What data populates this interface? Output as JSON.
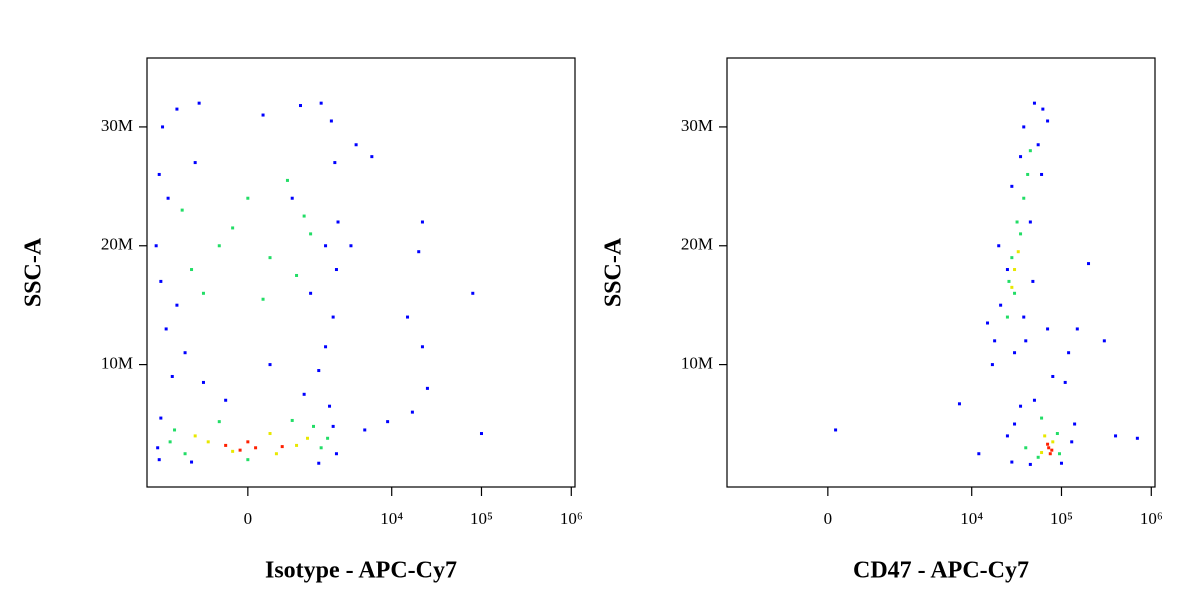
{
  "chart_data": [
    {
      "type": "scatter",
      "xlabel": "Isotype - APC-Cy7",
      "ylabel": "SSC-A",
      "xscale": "logicle",
      "xlim": [
        -3300,
        1100000
      ],
      "ylim": [
        -300000,
        35800000
      ],
      "xticks": [
        0,
        {
          "value": 10000,
          "label": "10⁴"
        },
        {
          "value": 100000,
          "label": "10⁵"
        },
        {
          "value": 1000000,
          "label": "10⁶"
        }
      ],
      "yticks": [
        {
          "value": 10000000,
          "label": "10M"
        },
        {
          "value": 20000000,
          "label": "20M"
        },
        {
          "value": 30000000,
          "label": "30M"
        }
      ],
      "series": [
        {
          "color": "#0000ff",
          "x": [
            -2200,
            -1500,
            -800,
            200,
            900,
            1600,
            2100,
            -2400,
            -1900,
            2300,
            2500,
            -2600,
            -2300,
            2400,
            2200,
            -2000,
            -1200,
            300,
            1500,
            -700,
            1000,
            -300,
            1800,
            -1700,
            2000,
            -2300,
            -2500,
            -2400,
            2400,
            2200,
            -1000,
            1500,
            6000,
            4000,
            3500,
            22000,
            20000,
            80000,
            15000,
            22000,
            25000,
            17000,
            100000,
            5000,
            9000,
            -1500,
            1200,
            -900,
            700,
            1800
          ],
          "y": [
            30000000,
            31500000,
            32000000,
            31000000,
            31800000,
            32000000,
            30500000,
            26000000,
            24000000,
            27000000,
            22000000,
            20000000,
            17000000,
            18000000,
            14000000,
            13000000,
            11000000,
            10000000,
            9500000,
            8500000,
            7500000,
            7000000,
            11500000,
            9000000,
            6500000,
            5500000,
            3000000,
            2000000,
            2500000,
            4800000,
            1800000,
            1700000,
            27500000,
            28500000,
            20000000,
            22000000,
            19500000,
            16000000,
            14000000,
            11500000,
            8000000,
            6000000,
            4200000,
            4500000,
            5200000,
            15000000,
            16000000,
            27000000,
            24000000,
            20000000
          ]
        },
        {
          "color": "#22dd66",
          "x": [
            -1000,
            -400,
            300,
            800,
            1200,
            -1300,
            0,
            600,
            -700,
            200,
            1000,
            -200,
            -1600,
            -1200,
            1300,
            1600,
            -400,
            700,
            -1800,
            1900,
            0
          ],
          "y": [
            18000000,
            20000000,
            19000000,
            17500000,
            21000000,
            23000000,
            24000000,
            25500000,
            16000000,
            15500000,
            22500000,
            21500000,
            4500000,
            2500000,
            4800000,
            3000000,
            5200000,
            5300000,
            3500000,
            3800000,
            2000000
          ]
        },
        {
          "color": "#e8e800",
          "x": [
            -600,
            300,
            800,
            -200,
            -900,
            1100,
            400
          ],
          "y": [
            3500000,
            4200000,
            3200000,
            2700000,
            4000000,
            3800000,
            2500000
          ]
        },
        {
          "color": "#ff2000",
          "x": [
            -300,
            100,
            500,
            0,
            -100
          ],
          "y": [
            3200000,
            3000000,
            3100000,
            3500000,
            2800000
          ]
        }
      ]
    },
    {
      "type": "scatter",
      "xlabel": "CD47 - APC-Cy7",
      "ylabel": "SSC-A",
      "xscale": "logicle",
      "xlim": [
        -3300,
        1100000
      ],
      "ylim": [
        -300000,
        35800000
      ],
      "xticks": [
        0,
        {
          "value": 10000,
          "label": "10⁴"
        },
        {
          "value": 100000,
          "label": "10⁵"
        },
        {
          "value": 1000000,
          "label": "10⁶"
        }
      ],
      "yticks": [
        {
          "value": 10000000,
          "label": "10M"
        },
        {
          "value": 20000000,
          "label": "20M"
        },
        {
          "value": 30000000,
          "label": "30M"
        }
      ],
      "series": [
        {
          "color": "#0000ff",
          "x": [
            18000,
            30000,
            21000,
            38000,
            20000,
            45000,
            28000,
            60000,
            38000,
            70000,
            50000,
            62000,
            25000,
            48000,
            17000,
            15000,
            55000,
            35000,
            40000,
            70000,
            80000,
            110000,
            50000,
            30000,
            25000,
            28000,
            130000,
            140000,
            100000,
            45000,
            35000,
            120000,
            200000,
            300000,
            400000,
            700000,
            100,
            7300,
            12000,
            150000
          ],
          "y": [
            12000000,
            11000000,
            15000000,
            14000000,
            20000000,
            22000000,
            25000000,
            26000000,
            30000000,
            30500000,
            32000000,
            31500000,
            18000000,
            17000000,
            10000000,
            13500000,
            28500000,
            27500000,
            12000000,
            13000000,
            9000000,
            8500000,
            7000000,
            5000000,
            4000000,
            1800000,
            3500000,
            5000000,
            1700000,
            1600000,
            6500000,
            11000000,
            18500000,
            12000000,
            4000000,
            3800000,
            4500000,
            6700000,
            2500000,
            13000000
          ]
        },
        {
          "color": "#22dd66",
          "x": [
            25000,
            30000,
            28000,
            35000,
            38000,
            42000,
            45000,
            32000,
            26000,
            40000,
            90000,
            60000,
            55000,
            95000
          ],
          "y": [
            14000000,
            16000000,
            19000000,
            21000000,
            24000000,
            26000000,
            28000000,
            22000000,
            17000000,
            3000000,
            4200000,
            5500000,
            2200000,
            2500000
          ]
        },
        {
          "color": "#e8e800",
          "x": [
            30000,
            33000,
            28000,
            65000,
            80000,
            60000
          ],
          "y": [
            18000000,
            19500000,
            16500000,
            4000000,
            3500000,
            2600000
          ]
        },
        {
          "color": "#ff2000",
          "x": [
            72000,
            78000,
            70000,
            75000
          ],
          "y": [
            3000000,
            2800000,
            3300000,
            2500000
          ]
        }
      ]
    }
  ]
}
